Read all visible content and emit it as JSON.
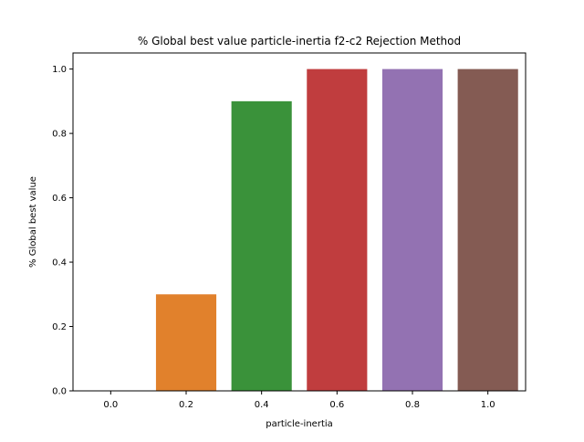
{
  "chart_data": {
    "type": "bar",
    "title": "% Global best value particle-inertia f2-c2 Rejection Method",
    "xlabel": "particle-inertia",
    "ylabel": "% Global best value",
    "categories": [
      "0.0",
      "0.2",
      "0.4",
      "0.6",
      "0.8",
      "1.0"
    ],
    "values": [
      0.0,
      0.3,
      0.9,
      1.0,
      1.0,
      1.0
    ],
    "colors": [
      "#1f77b4",
      "#e1812c",
      "#3a923a",
      "#c03d3e",
      "#9372b2",
      "#845b53"
    ],
    "ylim": [
      0,
      1.05
    ],
    "yticks": [
      "0.0",
      "0.2",
      "0.4",
      "0.6",
      "0.8",
      "1.0"
    ],
    "grid": false,
    "legend": "none"
  }
}
